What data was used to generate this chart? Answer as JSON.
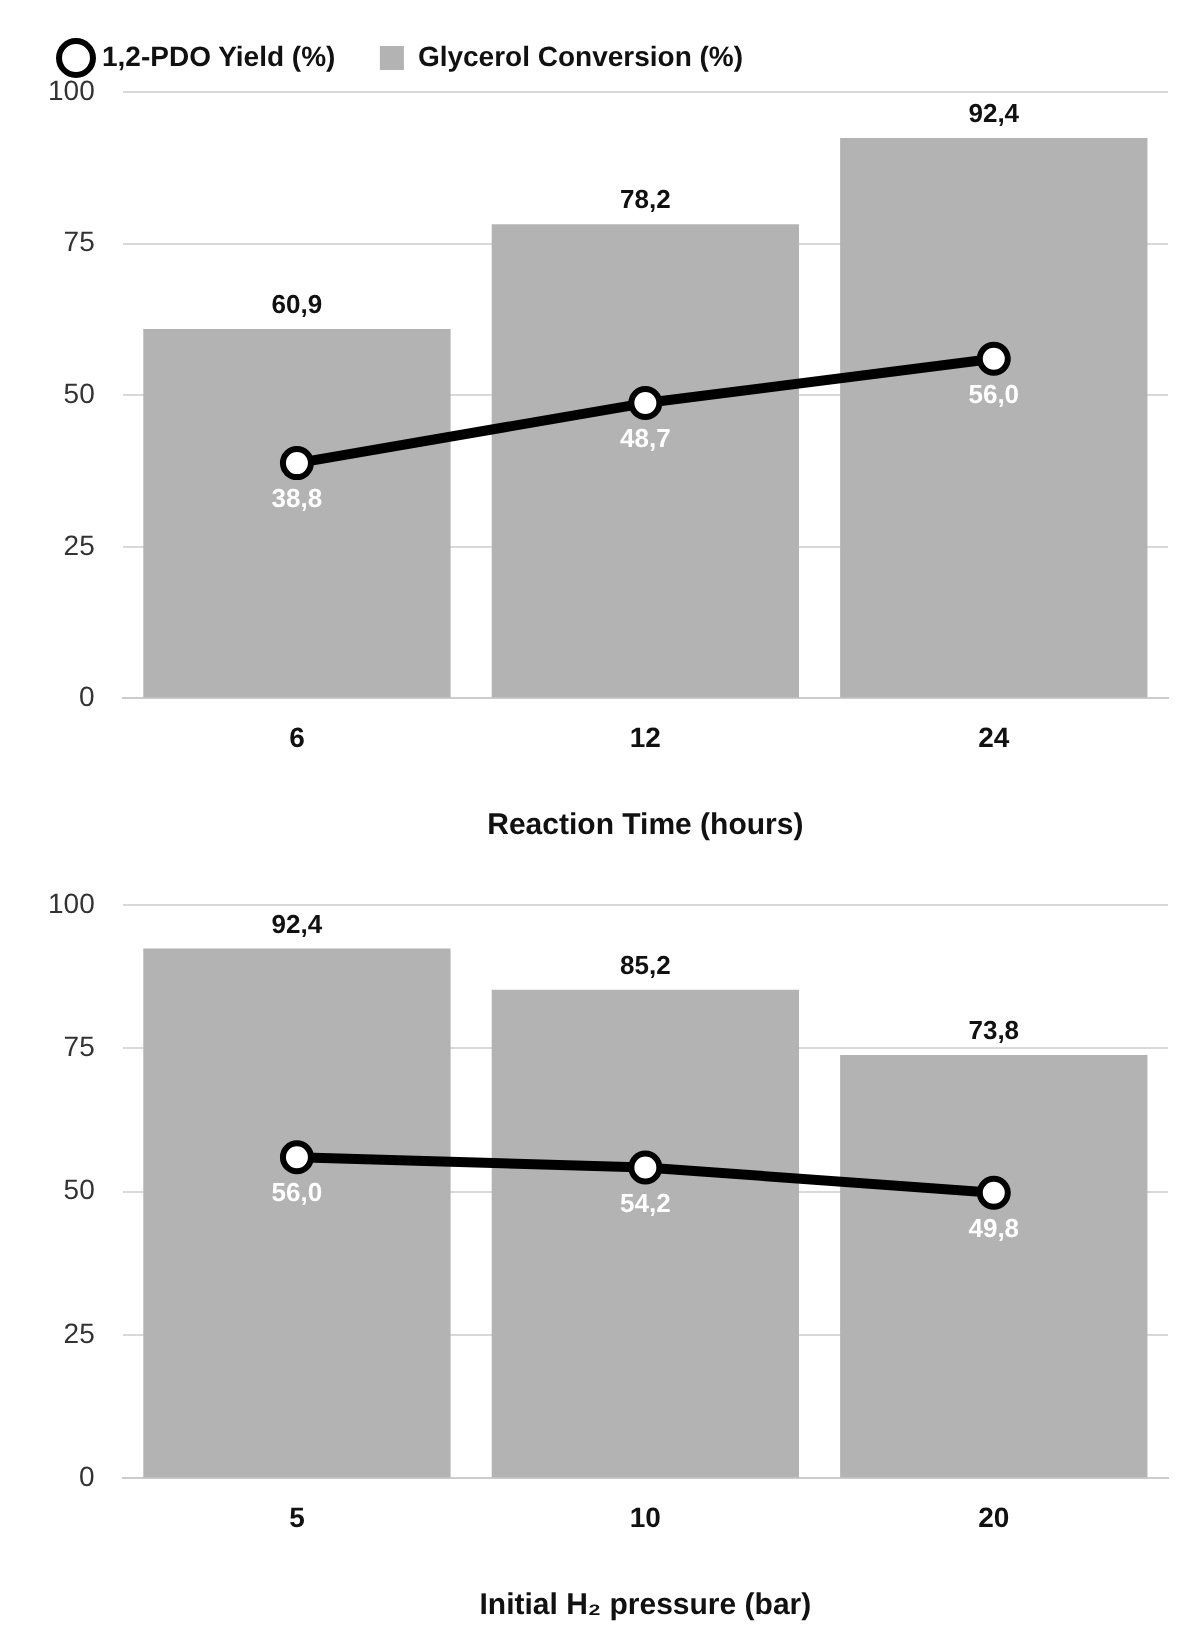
{
  "chart_data": [
    {
      "type": "bar",
      "xlabel": "Reaction Time (hours)",
      "categories": [
        "6",
        "12",
        "24"
      ],
      "ylim": [
        0,
        100
      ],
      "yticks": [
        0,
        25,
        50,
        75,
        100
      ],
      "grid": "y",
      "legend": "top left",
      "series": [
        {
          "name": "1,2-PDO Yield (%)",
          "type": "line",
          "color": "#000000",
          "marker": "circle",
          "values": [
            38.8,
            48.7,
            56.0
          ],
          "value_labels": [
            "38,8",
            "48,7",
            "56,0"
          ]
        },
        {
          "name": "Glycerol Conversion (%)",
          "color": "#b3b3b3",
          "values": [
            60.9,
            78.2,
            92.4
          ],
          "value_labels": [
            "60,9",
            "78,2",
            "92,4"
          ]
        }
      ]
    },
    {
      "type": "bar",
      "xlabel": "Initial H₂ pressure (bar)",
      "categories": [
        "5",
        "10",
        "20"
      ],
      "ylim": [
        0,
        100
      ],
      "yticks": [
        0,
        25,
        50,
        75,
        100
      ],
      "grid": "y",
      "legend": false,
      "series": [
        {
          "type": "line",
          "color": "#000000",
          "marker": "circle",
          "values": [
            56.0,
            54.2,
            49.8
          ],
          "value_labels": [
            "56,0",
            "54,2",
            "49,8"
          ]
        },
        {
          "color": "#b3b3b3",
          "values": [
            92.4,
            85.2,
            73.8
          ],
          "value_labels": [
            "92,4",
            "85,2",
            "73,8"
          ]
        }
      ]
    }
  ]
}
